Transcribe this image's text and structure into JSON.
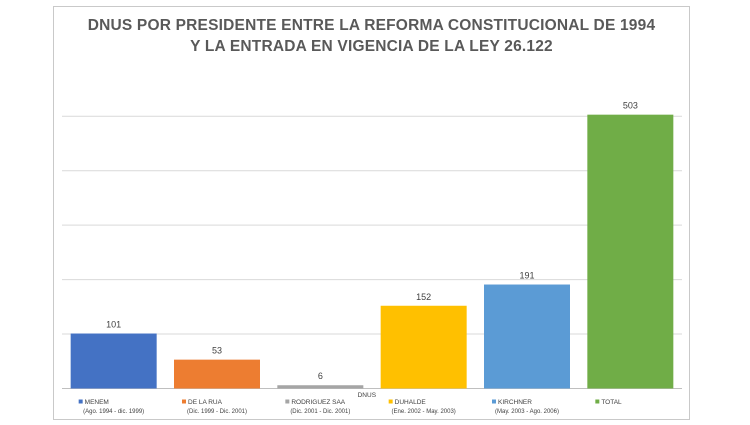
{
  "chart_data": {
    "type": "bar",
    "title_line1": "DNUS POR PRESIDENTE ENTRE LA REFORMA CONSTITUCIONAL DE 1994",
    "title_line2": "Y LA ENTRADA EN VIGENCIA DE LA LEY 26.122",
    "xlabel": "DNUS",
    "ylim": [
      0,
      600
    ],
    "gridlines": [
      100,
      200,
      300,
      400,
      500
    ],
    "grid": true,
    "categories": [
      {
        "name": "MENEM",
        "period": "(Ago. 1994 - dic. 1999)",
        "value": 101,
        "color": "#4472c4"
      },
      {
        "name": "DE LA RUA",
        "period": "(Dic. 1999 - Dic. 2001)",
        "value": 53,
        "color": "#ed7d31"
      },
      {
        "name": "RODRIGUEZ SAA",
        "period": "(Dic. 2001 - Dic. 2001)",
        "value": 6,
        "color": "#a5a5a5"
      },
      {
        "name": "DUHALDE",
        "period": "(Ene. 2002 - May. 2003)",
        "value": 152,
        "color": "#ffc000"
      },
      {
        "name": "KIRCHNER",
        "period": "(May. 2003 - Ago. 2006)",
        "value": 191,
        "color": "#5b9bd5"
      },
      {
        "name": "TOTAL",
        "period": "",
        "value": 503,
        "color": "#70ad47"
      }
    ]
  }
}
